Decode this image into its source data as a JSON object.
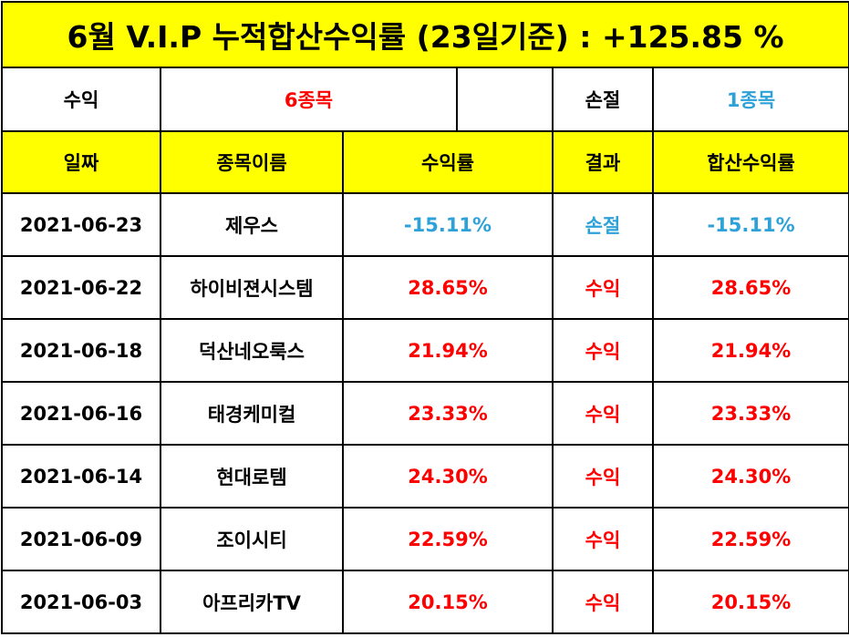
{
  "title": "6월 V.I.P 누적합산수익률 (23일기준) : +125.85 %",
  "summary": {
    "profit_label": "수익",
    "profit_value": "6종목",
    "loss_label": "손절",
    "loss_value": "1종목"
  },
  "headers": {
    "date": "일짜",
    "name": "종목이름",
    "return": "수익률",
    "result": "결과",
    "cumulative": "합산수익률"
  },
  "rows": [
    {
      "date": "2021-06-23",
      "name": "제우스",
      "return": "-15.11%",
      "result": "손절",
      "cumulative": "-15.11%"
    },
    {
      "date": "2021-06-22",
      "name": "하이비젼시스템",
      "return": "28.65%",
      "result": "수익",
      "cumulative": "28.65%"
    },
    {
      "date": "2021-06-18",
      "name": "덕산네오룩스",
      "return": "21.94%",
      "result": "수익",
      "cumulative": "21.94%"
    },
    {
      "date": "2021-06-16",
      "name": "태경케미컬",
      "return": "23.33%",
      "result": "수익",
      "cumulative": "23.33%"
    },
    {
      "date": "2021-06-14",
      "name": "현대로템",
      "return": "24.30%",
      "result": "수익",
      "cumulative": "24.30%"
    },
    {
      "date": "2021-06-09",
      "name": "조이시티",
      "return": "22.59%",
      "result": "수익",
      "cumulative": "22.59%"
    },
    {
      "date": "2021-06-03",
      "name": "아프리카TV",
      "return": "20.15%",
      "result": "수익",
      "cumulative": "20.15%"
    }
  ],
  "colors": {
    "header_bg": "#ffff00",
    "profit": "#ff0000",
    "loss": "#2ea2d8",
    "border": "#000000"
  }
}
